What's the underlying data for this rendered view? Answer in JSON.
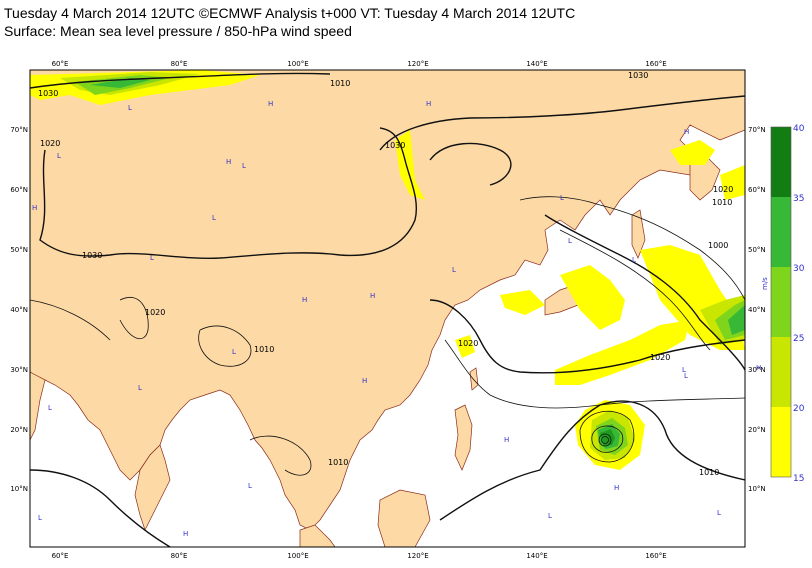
{
  "header": {
    "line1": "Tuesday 4 March 2014 12UTC ©ECMWF Analysis t+000 VT: Tuesday 4 March 2014 12UTC",
    "line2": "Surface: Mean sea level pressure / 850-hPa wind speed"
  },
  "map": {
    "lon_ticks": [
      "60°E",
      "80°E",
      "100°E",
      "120°E",
      "140°E",
      "160°E"
    ],
    "lat_ticks": [
      "70°N",
      "60°N",
      "50°N",
      "40°N",
      "30°N",
      "20°N",
      "10°N"
    ],
    "land_color": "#fcd9a5",
    "sea_color": "#ffffff",
    "isobar_labels": [
      "1030",
      "1010",
      "1020",
      "1030",
      "1030",
      "1030",
      "1020",
      "1010",
      "1000",
      "1020",
      "1010",
      "1020",
      "1010",
      "1020",
      "1010"
    ],
    "pressure_centres": [
      "H",
      "L",
      "L",
      "H",
      "H",
      "L",
      "L",
      "H",
      "L",
      "H",
      "L",
      "H",
      "L",
      "L",
      "H",
      "L",
      "H",
      "L",
      "L",
      "H",
      "L",
      "L",
      "H",
      "L",
      "L",
      "H",
      "L",
      "L",
      "L",
      "H"
    ]
  },
  "colorbar": {
    "unit": "m/s",
    "ticks": [
      "40",
      "35",
      "30",
      "25",
      "20",
      "15"
    ],
    "colors": [
      "#137d13",
      "#1f9a1f",
      "#37b837",
      "#7fd41c",
      "#c8e600",
      "#ffff00"
    ]
  }
}
